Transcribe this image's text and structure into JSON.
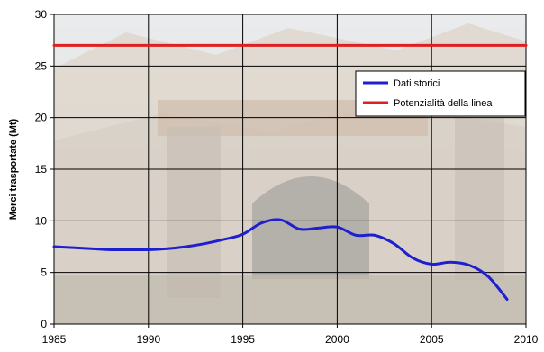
{
  "chart_data": {
    "type": "line",
    "ylabel": "Merci trasportate (Mt)",
    "xlim": [
      1985,
      2010
    ],
    "ylim": [
      0,
      30
    ],
    "x_ticks": [
      1985,
      1990,
      1995,
      2000,
      2005,
      2010
    ],
    "y_ticks": [
      0,
      5,
      10,
      15,
      20,
      25,
      30
    ],
    "grid": true,
    "legend_position": "top-right",
    "background": "photo-of-railway-tunnel-portal",
    "series": [
      {
        "name": "Dati storici",
        "color": "#1f1fd0",
        "x": [
          1985,
          1986,
          1987,
          1988,
          1989,
          1990,
          1991,
          1992,
          1993,
          1994,
          1995,
          1996,
          1997,
          1998,
          1999,
          2000,
          2001,
          2002,
          2003,
          2004,
          2005,
          2006,
          2007,
          2008,
          2009
        ],
        "y": [
          7.5,
          7.4,
          7.3,
          7.2,
          7.2,
          7.2,
          7.3,
          7.5,
          7.8,
          8.2,
          8.7,
          9.8,
          10.1,
          9.2,
          9.3,
          9.4,
          8.6,
          8.6,
          7.8,
          6.4,
          5.8,
          6.0,
          5.7,
          4.6,
          2.4
        ]
      },
      {
        "name": "Potenzialità della linea",
        "color": "#e02020",
        "x": [
          1985,
          2010
        ],
        "y": [
          27,
          27
        ]
      }
    ]
  }
}
